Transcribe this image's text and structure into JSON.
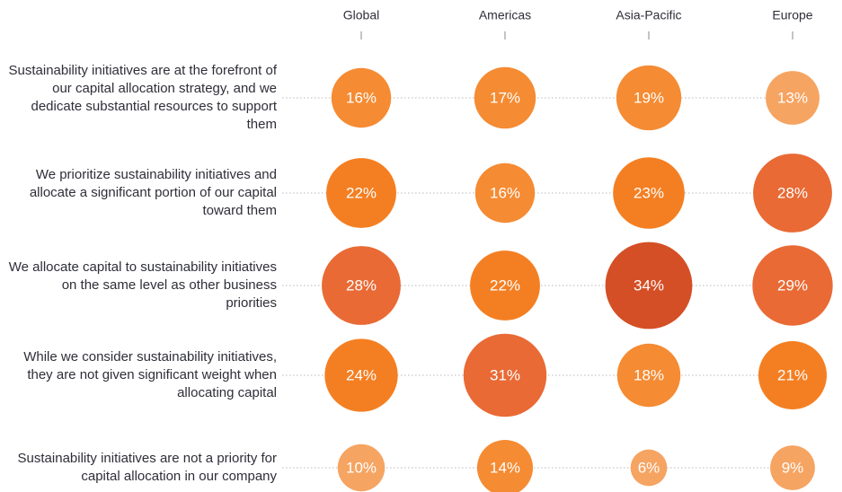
{
  "chart_data": {
    "type": "bubble",
    "categories": [
      "Sustainability initiatives are at the forefront of our capital allocation strategy, and we dedicate substantial resources to support them",
      "We prioritize sustainability initiatives and allocate a significant portion of our capital toward them",
      "We allocate capital to sustainability initiatives on the same level as other business priorities",
      "While we consider sustainability initiatives, they are not given significant weight when allocating capital",
      "Sustainability initiatives are not a priority for capital allocation in our company"
    ],
    "series": [
      {
        "name": "Global",
        "values": [
          16,
          22,
          28,
          24,
          10
        ],
        "value_labels": [
          "16%",
          "22%",
          "28%",
          "24%",
          "10%"
        ],
        "colors": [
          "#f58b33",
          "#f47f22",
          "#e96a35",
          "#f47f22",
          "#f6a462"
        ]
      },
      {
        "name": "Americas",
        "values": [
          17,
          16,
          22,
          31,
          14
        ],
        "value_labels": [
          "17%",
          "16%",
          "22%",
          "31%",
          "14%"
        ],
        "colors": [
          "#f58b33",
          "#f58b33",
          "#f47f22",
          "#e96a35",
          "#f58b33"
        ]
      },
      {
        "name": "Asia-Pacific",
        "values": [
          19,
          23,
          34,
          18,
          6
        ],
        "value_labels": [
          "19%",
          "23%",
          "34%",
          "18%",
          "6%"
        ],
        "colors": [
          "#f58b33",
          "#f47f22",
          "#d44f26",
          "#f58b33",
          "#f6a462"
        ]
      },
      {
        "name": "Europe",
        "values": [
          13,
          28,
          29,
          21,
          9
        ],
        "value_labels": [
          "13%",
          "28%",
          "29%",
          "21%",
          "9%"
        ],
        "colors": [
          "#f6a462",
          "#e96a35",
          "#e96a35",
          "#f47f22",
          "#f6a462"
        ]
      }
    ]
  }
}
